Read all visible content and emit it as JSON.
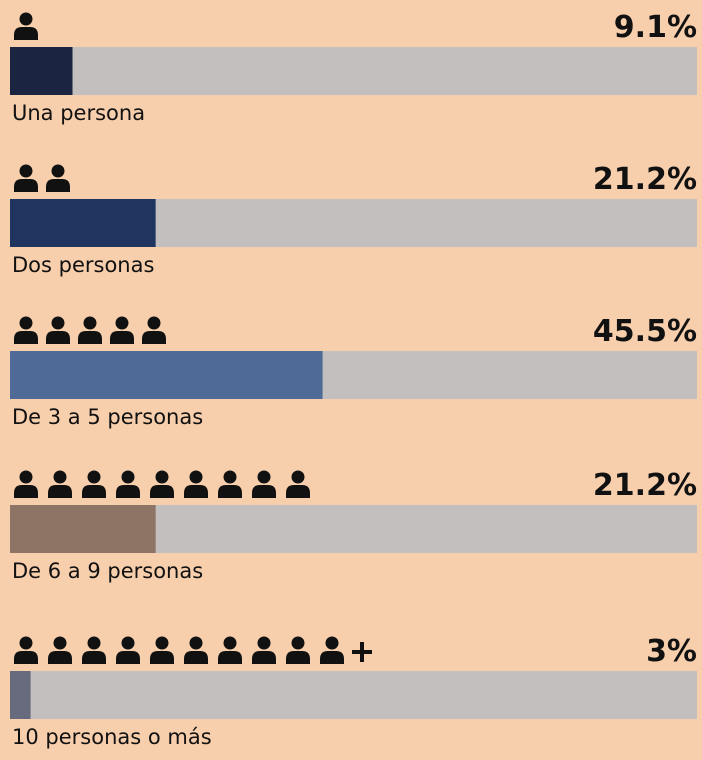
{
  "chart_data": {
    "type": "bar",
    "categories": [
      "Una persona",
      "Dos personas",
      "De 3 a 5 personas",
      "De 6 a 9 personas",
      "10 personas o más"
    ],
    "values": [
      9.1,
      21.2,
      45.5,
      21.2,
      3
    ],
    "value_labels": [
      "9.1%",
      "21.2%",
      "45.5%",
      "21.2%",
      "3%"
    ],
    "colors": [
      "#1b2541",
      "#1f3560",
      "#4f6a96",
      "#8d7464",
      "#686b7e"
    ],
    "xlim": [
      0,
      100
    ]
  }
}
